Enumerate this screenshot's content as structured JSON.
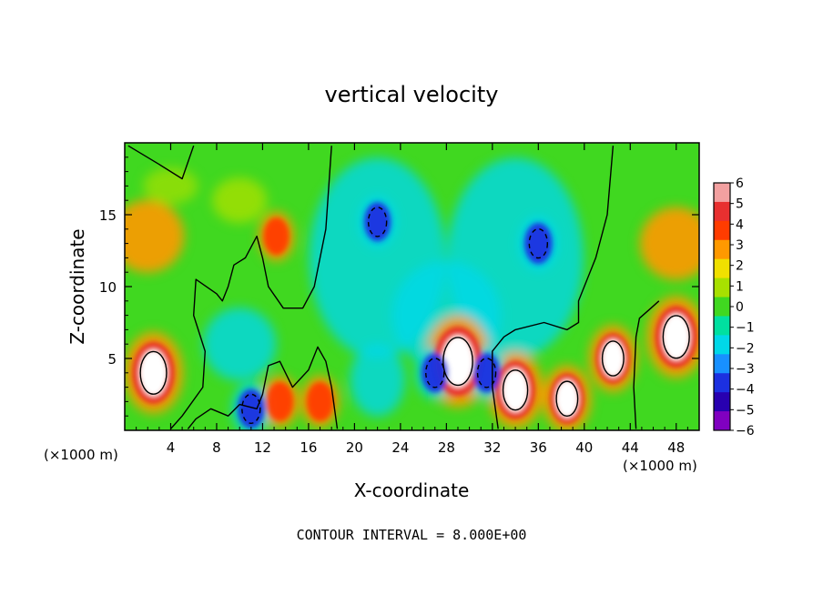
{
  "chart_data": {
    "type": "heatmap",
    "title": "vertical velocity",
    "xlabel": "X-coordinate",
    "ylabel": "Z-coordinate",
    "x_unit_label_left": "(×1000 m)",
    "x_unit_label_right": "(×1000 m)",
    "xlim": [
      0,
      50
    ],
    "ylim": [
      0,
      20
    ],
    "x_ticks": [
      4,
      8,
      12,
      16,
      20,
      24,
      28,
      32,
      36,
      40,
      44,
      48
    ],
    "y_ticks": [
      5,
      10,
      15
    ],
    "colorbar": {
      "levels": [
        6,
        5,
        4,
        3,
        2,
        1,
        0,
        -1,
        -2,
        -3,
        -4,
        -5,
        -6
      ],
      "colors": [
        "#f2a0a0",
        "#e83030",
        "#ff3c00",
        "#ff9900",
        "#f0e000",
        "#a8e000",
        "#40d820",
        "#00e0a0",
        "#00d8e8",
        "#1890ff",
        "#1c30e0",
        "#2800b0",
        "#8000c0"
      ],
      "tick_labels": [
        "6",
        "5",
        "4",
        "3",
        "2",
        "1",
        "0",
        "−1",
        "−2",
        "−3",
        "−4",
        "−5",
        "−6"
      ]
    },
    "features": [
      {
        "x": 2.5,
        "z": 4.0,
        "value": 10,
        "kind": "updraft"
      },
      {
        "x": 29.0,
        "z": 4.8,
        "value": 12,
        "kind": "updraft"
      },
      {
        "x": 34.0,
        "z": 2.8,
        "value": 9,
        "kind": "updraft"
      },
      {
        "x": 38.5,
        "z": 2.2,
        "value": 7,
        "kind": "updraft"
      },
      {
        "x": 42.5,
        "z": 5.0,
        "value": 7,
        "kind": "updraft"
      },
      {
        "x": 48.0,
        "z": 6.5,
        "value": 10,
        "kind": "updraft"
      },
      {
        "x": 13.2,
        "z": 13.5,
        "value": 3.5,
        "kind": "updraft"
      },
      {
        "x": 17.0,
        "z": 2.0,
        "value": 4,
        "kind": "updraft"
      },
      {
        "x": 13.5,
        "z": 2.0,
        "value": 4,
        "kind": "updraft"
      },
      {
        "x": 22.0,
        "z": 14.5,
        "value": -4,
        "kind": "downdraft"
      },
      {
        "x": 36.0,
        "z": 13.0,
        "value": -4.5,
        "kind": "downdraft"
      },
      {
        "x": 11.0,
        "z": 1.5,
        "value": -4,
        "kind": "downdraft"
      },
      {
        "x": 27.0,
        "z": 4.0,
        "value": -4,
        "kind": "downdraft"
      },
      {
        "x": 31.5,
        "z": 4.0,
        "value": -4,
        "kind": "downdraft"
      }
    ],
    "legend": "colorbar-right"
  },
  "footer": {
    "contour_interval": "CONTOUR INTERVAL = 8.000E+00"
  },
  "colors": {
    "background": "#ffffff",
    "axis": "#000000"
  }
}
